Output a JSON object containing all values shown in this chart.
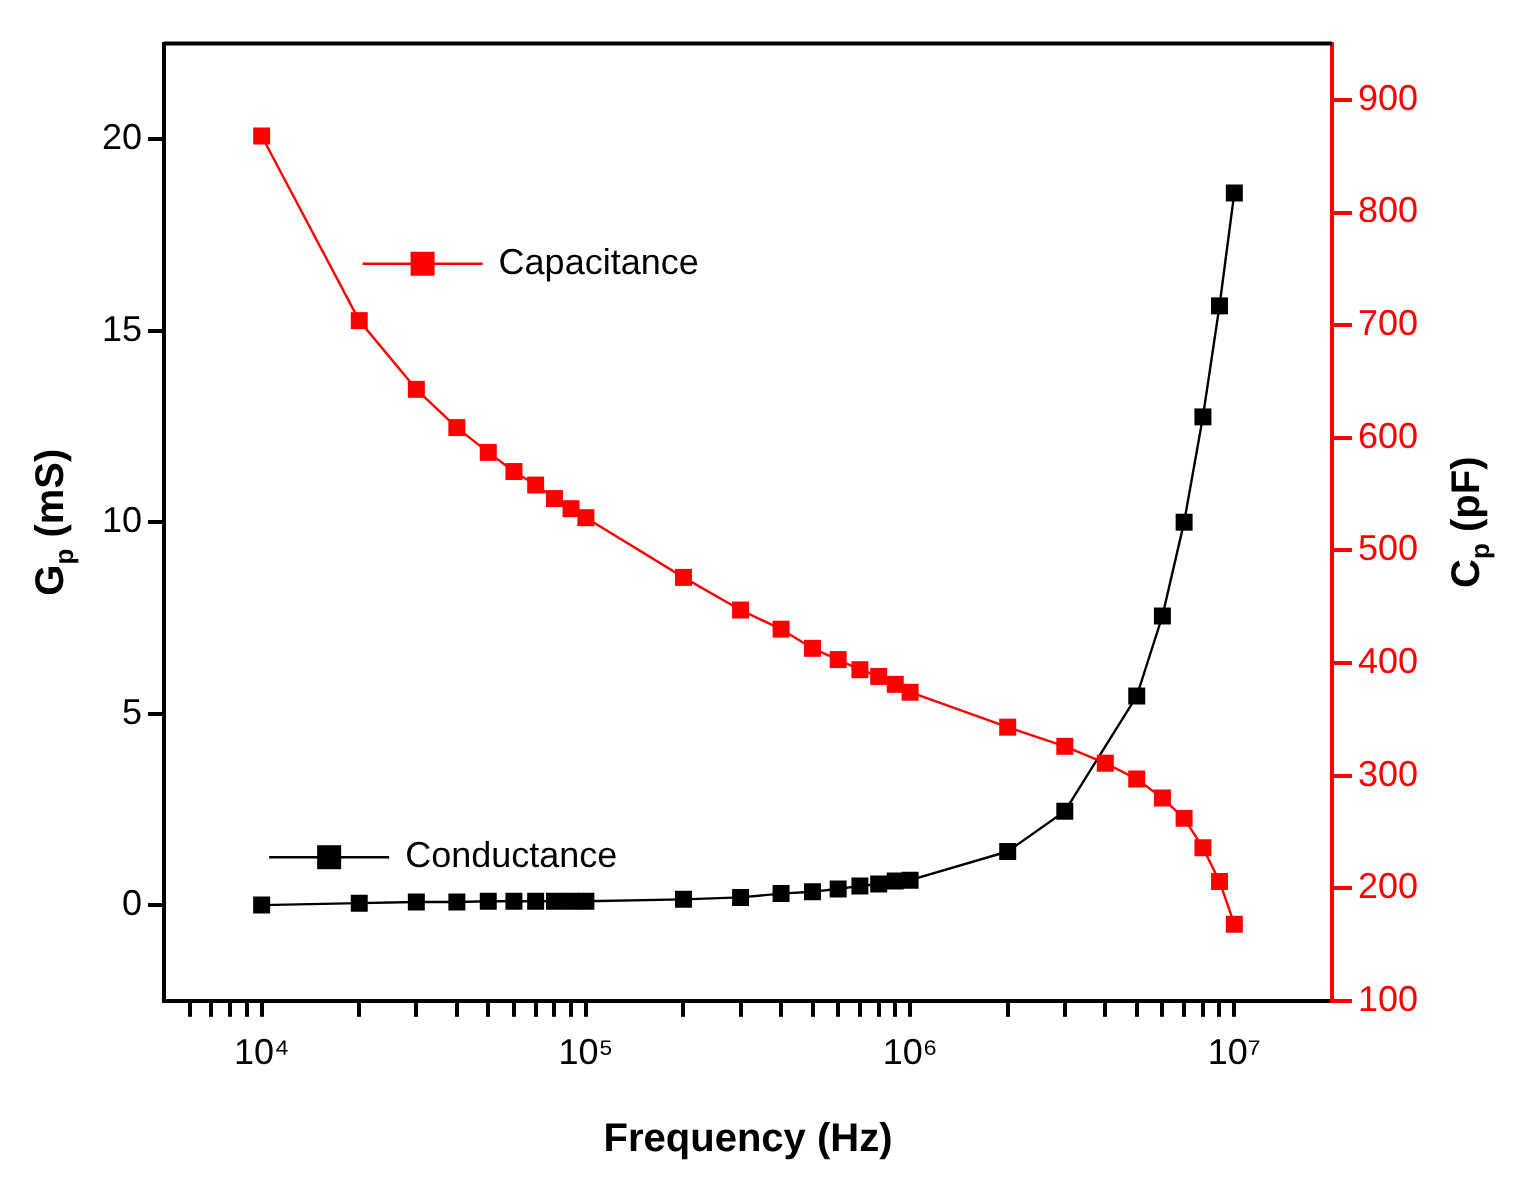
{
  "chart_data": {
    "type": "line",
    "xlabel": "Frequency (Hz)",
    "ylabel": "G$_{p}$ (mS)",
    "y2label": "C$_{p}$ (pF)",
    "log": "x",
    "marker": "square",
    "legend": "left",
    "x": [
      10000,
      20000,
      30000,
      40000,
      50000,
      60000,
      70000,
      80000,
      90000,
      100000,
      200000,
      300000,
      400000,
      500000,
      600000,
      700000,
      800000,
      900000,
      1000000,
      2000000,
      3000000,
      4000000,
      5000000,
      6000000,
      7000000,
      8000000,
      9000000,
      10000000
    ],
    "xlim": [
      5000,
      20000000
    ],
    "xticks": [
      {
        "value": 6000,
        "label": null
      },
      {
        "value": 7000,
        "label": null
      },
      {
        "value": 8000,
        "label": null
      },
      {
        "value": 9000,
        "label": null
      },
      {
        "value": 10000,
        "label": "10⁴"
      },
      {
        "value": 20000,
        "label": null
      },
      {
        "value": 30000,
        "label": null
      },
      {
        "value": 40000,
        "label": null
      },
      {
        "value": 50000,
        "label": null
      },
      {
        "value": 60000,
        "label": null
      },
      {
        "value": 70000,
        "label": null
      },
      {
        "value": 80000,
        "label": null
      },
      {
        "value": 90000,
        "label": null
      },
      {
        "value": 100000,
        "label": "10⁵"
      },
      {
        "value": 200000,
        "label": null
      },
      {
        "value": 300000,
        "label": null
      },
      {
        "value": 400000,
        "label": null
      },
      {
        "value": 500000,
        "label": null
      },
      {
        "value": 600000,
        "label": null
      },
      {
        "value": 700000,
        "label": null
      },
      {
        "value": 800000,
        "label": null
      },
      {
        "value": 900000,
        "label": null
      },
      {
        "value": 1000000,
        "label": "10⁶"
      },
      {
        "value": 2000000,
        "label": null
      },
      {
        "value": 3000000,
        "label": null
      },
      {
        "value": 4000000,
        "label": null
      },
      {
        "value": 5000000,
        "label": null
      },
      {
        "value": 6000000,
        "label": null
      },
      {
        "value": 7000000,
        "label": null
      },
      {
        "value": 8000000,
        "label": null
      },
      {
        "value": 9000000,
        "label": null
      },
      {
        "value": 10000000,
        "label": "10⁷"
      }
    ],
    "ylim": [
      -2.5,
      22.5
    ],
    "yticks": [
      0,
      5,
      10,
      15,
      20
    ],
    "y2lim": [
      100,
      950
    ],
    "y2ticks": [
      100,
      200,
      300,
      400,
      500,
      600,
      700,
      800,
      900
    ],
    "series": [
      {
        "name": "Capacitance",
        "color": "#ff0000",
        "axis": "y2",
        "values": [
          868,
          704,
          643,
          609,
          587,
          570,
          558,
          546,
          537,
          529,
          476,
          447,
          430,
          413,
          403,
          394,
          388,
          381,
          374,
          343,
          326,
          311,
          297,
          280,
          262,
          236,
          206,
          168
        ]
      },
      {
        "name": "Conductance",
        "color": "#000000",
        "values": [
          0.0,
          0.05,
          0.08,
          0.08,
          0.1,
          0.1,
          0.1,
          0.1,
          0.1,
          0.1,
          0.15,
          0.2,
          0.3,
          0.35,
          0.42,
          0.5,
          0.55,
          0.63,
          0.65,
          1.4,
          2.45,
          null,
          5.46,
          7.55,
          10.0,
          12.75,
          15.65,
          18.6
        ]
      }
    ]
  }
}
